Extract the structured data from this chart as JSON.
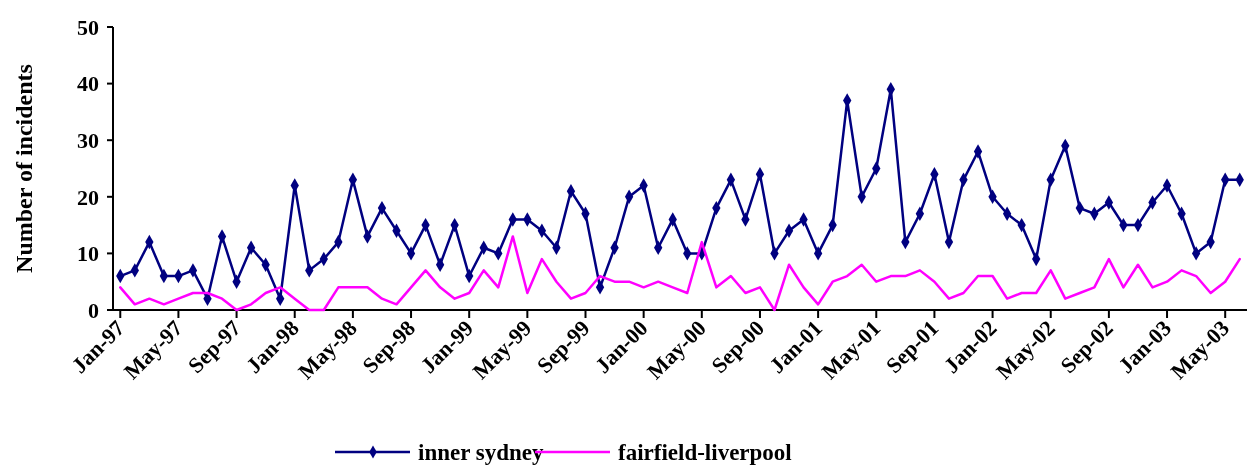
{
  "chart_data": {
    "type": "line",
    "ylabel": "Number of incidents",
    "categories": [
      "Jan-97",
      null,
      null,
      null,
      "May-97",
      null,
      null,
      null,
      "Sep-97",
      null,
      null,
      null,
      "Jan-98",
      null,
      null,
      null,
      "May-98",
      null,
      null,
      null,
      "Sep-98",
      null,
      null,
      null,
      "Jan-99",
      null,
      null,
      null,
      "May-99",
      null,
      null,
      null,
      "Sep-99",
      null,
      null,
      null,
      "Jan-00",
      null,
      null,
      null,
      "May-00",
      null,
      null,
      null,
      "Sep-00",
      null,
      null,
      null,
      "Jan-01",
      null,
      null,
      null,
      "May-01",
      null,
      null,
      null,
      "Sep-01",
      null,
      null,
      null,
      "Jan-02",
      null,
      null,
      null,
      "May-02",
      null,
      null,
      null,
      "Sep-02",
      null,
      null,
      null,
      "Jan-03",
      null,
      null,
      null,
      "May-03",
      null
    ],
    "series": [
      {
        "name": "inner sydney",
        "color": "#000080",
        "marker": "diamond",
        "values": [
          6,
          7,
          12,
          6,
          6,
          7,
          2,
          13,
          5,
          11,
          8,
          2,
          22,
          7,
          9,
          12,
          23,
          13,
          18,
          14,
          10,
          15,
          8,
          15,
          6,
          11,
          10,
          16,
          16,
          14,
          11,
          21,
          17,
          4,
          11,
          20,
          22,
          11,
          16,
          10,
          10,
          18,
          23,
          16,
          24,
          10,
          14,
          16,
          10,
          15,
          37,
          20,
          25,
          39,
          12,
          17,
          24,
          12,
          23,
          28,
          20,
          17,
          15,
          9,
          23,
          29,
          18,
          17,
          19,
          15,
          15,
          19,
          22,
          17,
          10,
          12,
          23,
          23
        ]
      },
      {
        "name": "fairfield-liverpool",
        "color": "#ff00ff",
        "marker": "none",
        "values": [
          4,
          1,
          2,
          1,
          2,
          3,
          3,
          2,
          0,
          1,
          3,
          4,
          2,
          0,
          0,
          4,
          4,
          4,
          2,
          1,
          4,
          7,
          4,
          2,
          3,
          7,
          4,
          13,
          3,
          9,
          5,
          2,
          3,
          6,
          5,
          5,
          4,
          5,
          4,
          3,
          12,
          4,
          6,
          3,
          4,
          0,
          8,
          4,
          1,
          5,
          6,
          8,
          5,
          6,
          6,
          7,
          5,
          2,
          3,
          6,
          6,
          2,
          3,
          3,
          7,
          2,
          3,
          4,
          9,
          4,
          8,
          4,
          5,
          7,
          6,
          3,
          5,
          9
        ]
      }
    ],
    "ylim": [
      0,
      50
    ],
    "yticks": [
      0,
      10,
      20,
      30,
      40,
      50
    ],
    "grid": false,
    "legend": "bottom"
  }
}
